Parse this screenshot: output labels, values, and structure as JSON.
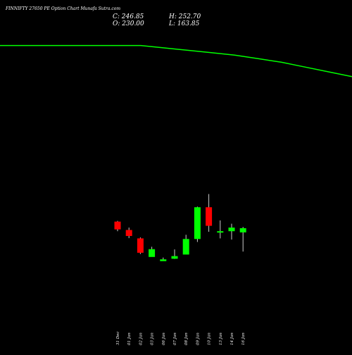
{
  "header": {
    "title": "FINNIFTY 27650  PE Option  Chart Munafa Sutra.com",
    "c": "C: 246.85",
    "o": "O: 230.00",
    "h": "H: 252.70",
    "l": "L: 163.85"
  },
  "colors": {
    "background": "#000000",
    "up": "#00ff00",
    "down": "#ff0000",
    "moving_average": "#00ff00",
    "text": "#ffffff"
  },
  "chart_data": {
    "type": "candlestick",
    "categories": [
      "31 Dec",
      "01 Jan",
      "02 Jan",
      "03 Jan",
      "06 Jan",
      "07 Jan",
      "08 Jan",
      "09 Jan",
      "10 Jan",
      "13 Jan",
      "14 Jan",
      "16 Jan"
    ],
    "ohlc": [
      {
        "o": 1090,
        "h": 1096,
        "l": 1010,
        "c": 1025,
        "dir": "down"
      },
      {
        "o": 1020,
        "h": 1040,
        "l": 952,
        "c": 970,
        "dir": "down"
      },
      {
        "o": 950,
        "h": 958,
        "l": 820,
        "c": 830,
        "dir": "down"
      },
      {
        "o": 795,
        "h": 880,
        "l": 798,
        "c": 860,
        "dir": "up"
      },
      {
        "o": 760,
        "h": 790,
        "l": 762,
        "c": 775,
        "dir": "up"
      },
      {
        "o": 780,
        "h": 858,
        "l": 778,
        "c": 802,
        "dir": "up"
      },
      {
        "o": 815,
        "h": 980,
        "l": 818,
        "c": 945,
        "dir": "up"
      },
      {
        "o": 945,
        "h": 1215,
        "l": 920,
        "c": 1210,
        "dir": "up"
      },
      {
        "o": 1210,
        "h": 1320,
        "l": 1005,
        "c": 1055,
        "dir": "down"
      },
      {
        "o": 1000,
        "h": 1100,
        "l": 950,
        "c": 1010,
        "dir": "up"
      },
      {
        "o": 1010,
        "h": 1072,
        "l": 940,
        "c": 1040,
        "dir": "up"
      },
      {
        "o": 1000,
        "h": 1045,
        "l": 840,
        "c": 1035,
        "dir": "up"
      }
    ],
    "moving_average": [
      2560,
      2560,
      2560,
      2560,
      2560,
      2560,
      2560,
      2540,
      2520,
      2500,
      2480,
      2450,
      2420,
      2380,
      2340,
      2300
    ],
    "ylim": [
      0,
      2940
    ]
  }
}
